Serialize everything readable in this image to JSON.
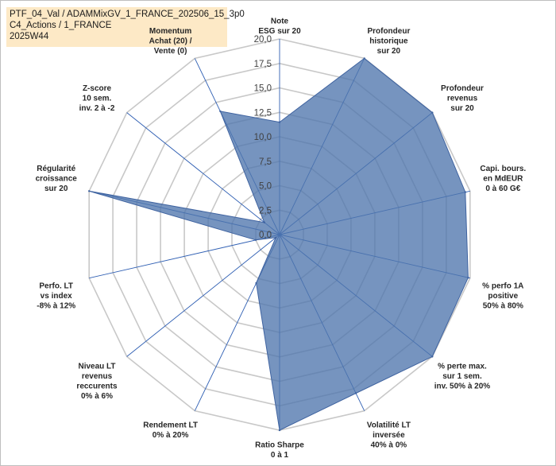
{
  "title_lines": [
    "PTF_04_Val / ADAMMixGV_1_FRANCE_202506_15_3p0",
    "C4_Actions / 1_FRANCE",
    "2025W44"
  ],
  "chart_data": {
    "type": "radar",
    "rmax": 20,
    "ticks": [
      "0,0",
      "2,5",
      "5,0",
      "7,5",
      "10,0",
      "12,5",
      "15,0",
      "17,5",
      "20,0"
    ],
    "tick_values": [
      0,
      2.5,
      5,
      7.5,
      10,
      12.5,
      15,
      17.5,
      20
    ],
    "axes": [
      {
        "label": [
          "Note",
          "ESG sur 20"
        ],
        "value": 11.5
      },
      {
        "label": [
          "Profondeur",
          "historique",
          "sur 20"
        ],
        "value": 20
      },
      {
        "label": [
          "Profondeur",
          "revenus",
          "sur 20"
        ],
        "value": 20
      },
      {
        "label": [
          "Capi. bours.",
          "en MdEUR",
          "0 à 60 G€"
        ],
        "value": 19.5
      },
      {
        "label": [
          "% perfo 1A",
          "positive",
          "50% à 80%"
        ],
        "value": 19.8
      },
      {
        "label": [
          "% perte max.",
          "sur 1 sem.",
          "inv. 50% à 20%"
        ],
        "value": 20
      },
      {
        "label": [
          "Volatilité LT",
          "inversée",
          "40% à 0%"
        ],
        "value": 18
      },
      {
        "label": [
          "Ratio Sharpe",
          "0 à 1"
        ],
        "value": 20
      },
      {
        "label": [
          "Rendement LT",
          "0% à 20%"
        ],
        "value": 5.5
      },
      {
        "label": [
          "Niveau LT",
          "revenus",
          "reccurents",
          "0% à 6%"
        ],
        "value": 0.5
      },
      {
        "label": [
          "Perfo. LT",
          "vs index",
          "-8% à 12%"
        ],
        "value": 2.5
      },
      {
        "label": [
          "Régularité",
          "croissance",
          "sur 20"
        ],
        "value": 20
      },
      {
        "label": [
          "Z-score",
          "10 sem.",
          "inv. 2 à -2"
        ],
        "value": 2
      },
      {
        "label": [
          "Momentum",
          "Achat (20) /",
          "Vente (0)"
        ],
        "value": 14
      }
    ],
    "fill_color": "#4f76ad",
    "stroke_color": "#3f63a0",
    "grid_color": "#c8c8c8",
    "spoke_color": "#2f5fb3"
  }
}
